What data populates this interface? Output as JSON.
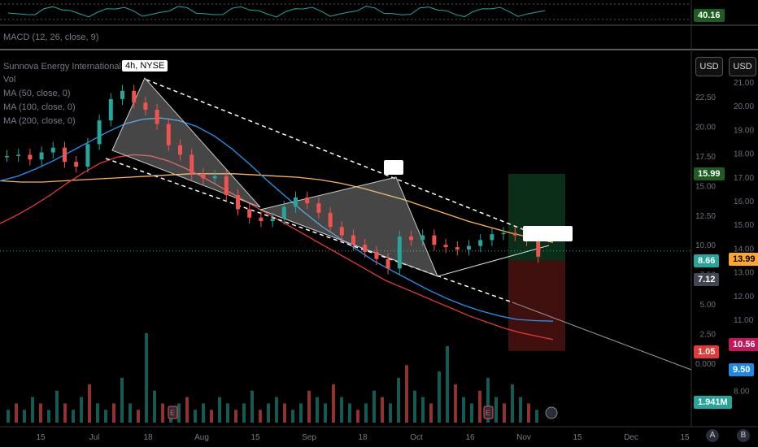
{
  "header": {
    "macd_label": "MACD (12, 26, close, 9)",
    "symbol_title": "Sunnova Energy International Inc.",
    "interval_exchange": "4h, NYSE",
    "indicators": [
      "Vol",
      "MA (50, close, 0)",
      "MA (100, close, 0)",
      "MA (200, close, 0)"
    ]
  },
  "currency_buttons": [
    "USD",
    "USD"
  ],
  "rsi_value": "40.16",
  "price_badges": [
    {
      "text": "15.99",
      "bg": "#1b5e20",
      "fg": "#ffffff"
    },
    {
      "text": "8.66",
      "bg": "#26a69a",
      "fg": "#ffffff"
    },
    {
      "text": "13.99",
      "bg": "#ffa726",
      "fg": "#000000"
    },
    {
      "text": "7.12",
      "bg": "#434651",
      "fg": "#ffffff"
    },
    {
      "text": "1.05",
      "bg": "#e53935",
      "fg": "#ffffff"
    },
    {
      "text": "10.56",
      "bg": "#c2185b",
      "fg": "#ffffff"
    },
    {
      "text": "9.50",
      "bg": "#1e88e5",
      "fg": "#ffffff"
    },
    {
      "text": "1.941M",
      "bg": "#26a69a",
      "fg": "#ffffff"
    }
  ],
  "nav_buttons": [
    "A",
    "B"
  ],
  "chart_data": {
    "type": "candlestick",
    "left_axis_ticks": [
      22.5,
      20.0,
      17.5,
      15.0,
      12.5,
      10.0,
      7.5,
      5.0,
      2.5,
      0.0
    ],
    "right_axis_ticks": [
      21.0,
      20.0,
      19.0,
      18.0,
      17.0,
      16.0,
      15.0,
      14.0,
      13.0,
      12.0,
      11.0,
      10.0,
      9.0,
      8.0
    ],
    "x_ticks": [
      "15",
      "Jul",
      "18",
      "Aug",
      "15",
      "Sep",
      "18",
      "Oct",
      "16",
      "Nov",
      "15",
      "Dec",
      "15"
    ],
    "close_path": [
      17.5,
      17.6,
      17.2,
      17.8,
      18.2,
      17.0,
      16.6,
      18.5,
      20.5,
      22.3,
      23.0,
      22.0,
      21.4,
      20.2,
      18.4,
      17.6,
      16.0,
      15.6,
      15.8,
      14.2,
      13.0,
      12.3,
      12.0,
      12.2,
      13.2,
      14.0,
      13.5,
      12.7,
      11.5,
      10.8,
      10.0,
      9.4,
      8.8,
      8.0,
      10.7,
      10.4,
      10.8,
      10.0,
      9.8,
      9.6,
      9.9,
      10.4,
      10.9,
      11.0,
      10.8,
      10.4,
      9.0
    ],
    "ma50": [
      15.4,
      15.8,
      16.4,
      17.1,
      17.9,
      18.7,
      19.5,
      20.2,
      20.6,
      20.7,
      20.5,
      20.0,
      19.2,
      18.1,
      16.8,
      15.4,
      14.1,
      12.8,
      11.6,
      10.6,
      9.6,
      8.6,
      7.8,
      7.0,
      6.2,
      5.5,
      4.9,
      4.4,
      4.0,
      3.7,
      3.6,
      3.55
    ],
    "ma100": [
      15.4,
      15.3,
      15.3,
      15.4,
      15.5,
      15.6,
      15.7,
      15.8,
      15.9,
      16.0,
      16.0,
      16.0,
      15.9,
      15.8,
      15.7,
      15.5,
      15.2,
      14.8,
      14.3,
      13.8,
      13.2,
      12.6,
      12.0,
      11.5,
      11.0,
      10.6,
      10.2
    ],
    "ma200": [
      11.8,
      12.5,
      13.3,
      14.2,
      15.2,
      16.1,
      16.9,
      17.4,
      17.6,
      17.5,
      17.1,
      16.5,
      15.8,
      15.0,
      14.2,
      13.4,
      12.6,
      11.8,
      11.0,
      10.2,
      9.4,
      8.6,
      7.8,
      7.0,
      6.4,
      5.8,
      5.2,
      4.6,
      4.0,
      3.5,
      3.0,
      2.6,
      2.3,
      2.0
    ],
    "volume": [
      2,
      3,
      2,
      4,
      3,
      2,
      5,
      3,
      2,
      4,
      6,
      3,
      2,
      3,
      7,
      3,
      2,
      14,
      5,
      3,
      2,
      3,
      4,
      2,
      3,
      2,
      4,
      3,
      2,
      3,
      5,
      2,
      3,
      4,
      3,
      2,
      3,
      5,
      4,
      3,
      6,
      4,
      3,
      2,
      3,
      5,
      4,
      3,
      7,
      9,
      5,
      4,
      3,
      8,
      12,
      6,
      4,
      3,
      5,
      7,
      4,
      3,
      6,
      4,
      3,
      2
    ],
    "position": {
      "entry": 8.66,
      "target": 15.99,
      "stop": 1.05
    }
  }
}
